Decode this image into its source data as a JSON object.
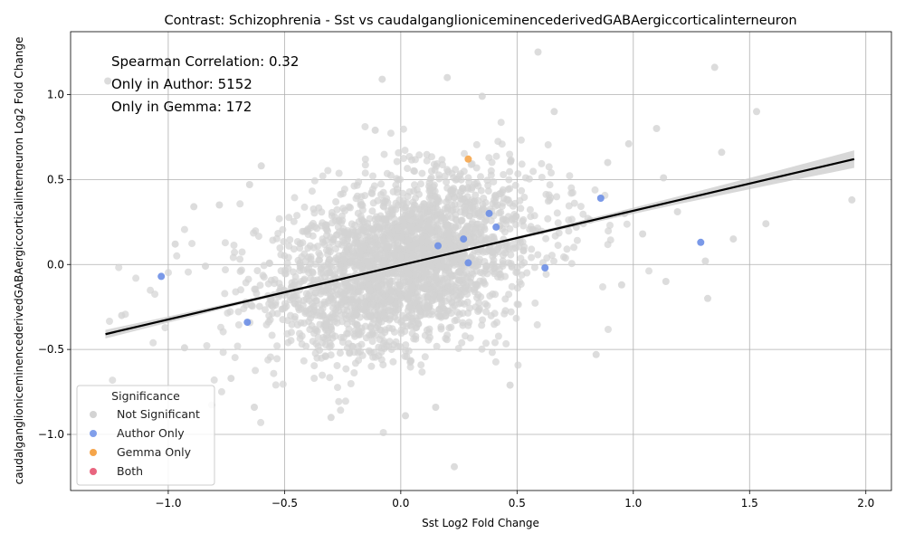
{
  "chart_data": {
    "type": "scatter",
    "title": "Contrast: Schizophrenia - Sst vs caudalganglioniceminencederivedGABAergiccorticalinterneuron",
    "xlabel": "Sst Log2 Fold Change",
    "ylabel": "caudalganglioniceminencederivedGABAergiccorticalinterneuron Log2 Fold Change",
    "xlim": [
      -1.42,
      2.11
    ],
    "ylim": [
      -1.33,
      1.37
    ],
    "xticks": [
      -1.0,
      -0.5,
      0.0,
      0.5,
      1.0,
      1.5,
      2.0
    ],
    "xtick_labels": [
      "−1.0",
      "−0.5",
      "0.0",
      "0.5",
      "1.0",
      "1.5",
      "2.0"
    ],
    "yticks": [
      -1.0,
      -0.5,
      0.0,
      0.5,
      1.0
    ],
    "ytick_labels": [
      "−1.0",
      "−0.5",
      "0.0",
      "0.5",
      "1.0"
    ],
    "grid": true,
    "annotations": [
      "Spearman Correlation: 0.32",
      "Only in Author: 5152",
      "Only in Gemma: 172"
    ],
    "legend": {
      "title": "Significance",
      "placement": "lower-left",
      "entries": [
        {
          "label": "Not Significant",
          "color": "#d3d3d3"
        },
        {
          "label": "Author Only",
          "color": "#6b8ee6"
        },
        {
          "label": "Gemma Only",
          "color": "#f5a54a"
        },
        {
          "label": "Both",
          "color": "#e8657f"
        }
      ]
    },
    "regression_line": {
      "x": [
        -1.27,
        1.95
      ],
      "y": [
        -0.41,
        0.62
      ],
      "color": "#000000"
    },
    "series": [
      {
        "name": "Author Only",
        "color": "#6b8ee6",
        "points": [
          [
            -1.03,
            -0.07
          ],
          [
            -0.66,
            -0.34
          ],
          [
            0.62,
            -0.02
          ],
          [
            0.86,
            0.39
          ],
          [
            1.29,
            0.13
          ],
          [
            0.38,
            0.3
          ],
          [
            0.41,
            0.22
          ],
          [
            0.27,
            0.15
          ],
          [
            0.29,
            0.01
          ],
          [
            0.16,
            0.11
          ]
        ]
      },
      {
        "name": "Gemma Only",
        "color": "#f5a54a",
        "points": [
          [
            0.29,
            0.62
          ]
        ]
      },
      {
        "name": "Not Significant",
        "color": "#d3d3d3",
        "outliers": [
          [
            -1.26,
            1.08
          ],
          [
            0.59,
            1.25
          ],
          [
            1.35,
            1.16
          ],
          [
            -0.08,
            1.09
          ],
          [
            0.2,
            1.1
          ],
          [
            1.53,
            0.9
          ],
          [
            1.94,
            0.38
          ],
          [
            1.57,
            0.24
          ],
          [
            1.38,
            0.66
          ],
          [
            1.43,
            0.15
          ],
          [
            1.31,
            0.02
          ],
          [
            1.32,
            -0.2
          ],
          [
            1.14,
            -0.1
          ],
          [
            1.13,
            0.51
          ],
          [
            1.1,
            0.8
          ],
          [
            1.19,
            0.31
          ],
          [
            -1.2,
            -0.3
          ],
          [
            -0.97,
            0.12
          ],
          [
            -0.93,
            -0.49
          ],
          [
            -0.89,
            0.34
          ],
          [
            -0.84,
            -0.01
          ],
          [
            -0.78,
            0.35
          ],
          [
            -0.73,
            -0.67
          ],
          [
            -0.63,
            -0.84
          ],
          [
            -0.3,
            -0.9
          ],
          [
            0.23,
            -1.19
          ],
          [
            0.02,
            -0.89
          ],
          [
            0.15,
            -0.84
          ],
          [
            0.84,
            -0.53
          ],
          [
            0.47,
            -0.71
          ],
          [
            -0.65,
            0.47
          ],
          [
            -0.6,
            0.58
          ],
          [
            0.95,
            -0.12
          ],
          [
            1.04,
            0.18
          ],
          [
            0.98,
            0.71
          ],
          [
            0.89,
            0.6
          ],
          [
            0.66,
            0.9
          ],
          [
            0.35,
            0.99
          ],
          [
            -0.11,
            0.79
          ]
        ]
      }
    ]
  }
}
